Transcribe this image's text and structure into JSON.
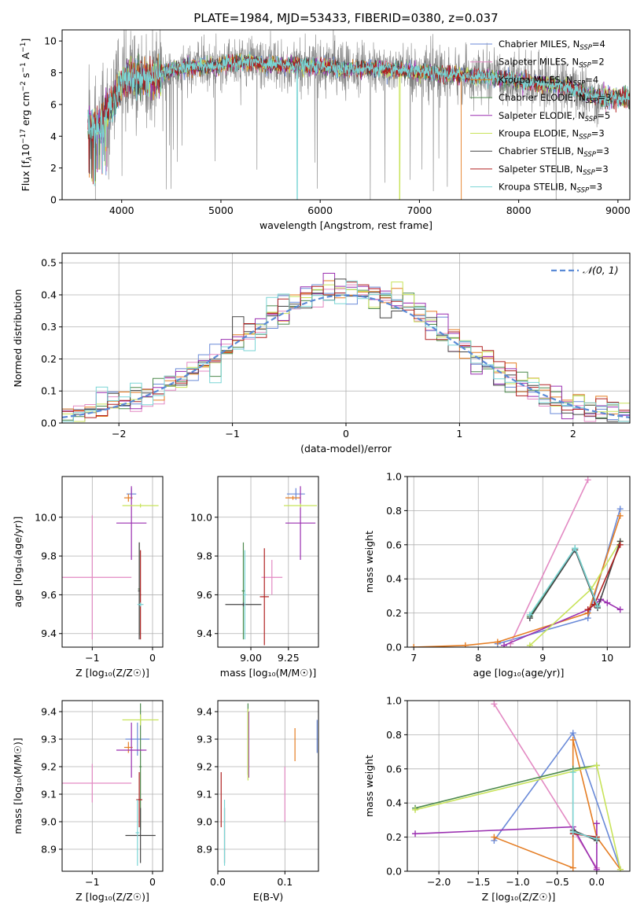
{
  "figure": {
    "title": "PLATE=1984, MJD=53433, FIBERID=0380, z=0.037"
  },
  "colors": {
    "Chabrier MILES": "#6a8ad8",
    "Salpeter MILES": "#e38ac3",
    "Kroupa MILES": "#e57d23",
    "Chabrier ELODIE": "#4d8a4d",
    "Salpeter ELODIE": "#9a2fb0",
    "Kroupa ELODIE": "#c8e35a",
    "Chabrier STELIB": "#444444",
    "Salpeter STELIB": "#b02222",
    "Kroupa STELIB": "#7ad5d5",
    "data": "#808080",
    "gaussian": "#5a8ad6"
  },
  "chart_data": [
    {
      "id": "spectrum",
      "type": "line",
      "title": "PLATE=1984, MJD=53433, FIBERID=0380, z=0.037",
      "xlabel": "wavelength [Angstrom, rest frame]",
      "ylabel_parts": [
        "Flux [f",
        "λ",
        "10",
        "−17",
        " erg cm",
        "−2",
        " s",
        "−1",
        " A",
        "−1",
        "]"
      ],
      "xlim": [
        3400,
        9120
      ],
      "ylim": [
        0,
        10.7
      ],
      "xticks": [
        4000,
        5000,
        6000,
        7000,
        8000,
        9000
      ],
      "yticks": [
        0,
        2,
        4,
        6,
        8,
        10
      ],
      "legend_position": "top-right",
      "legend": [
        {
          "name": "Chabrier MILES",
          "nssp": "4"
        },
        {
          "name": "Salpeter MILES",
          "nssp": "2"
        },
        {
          "name": "Kroupa MILES",
          "nssp": "4"
        },
        {
          "name": "Chabrier ELODIE",
          "nssp": "3"
        },
        {
          "name": "Salpeter ELODIE",
          "nssp": "5"
        },
        {
          "name": "Kroupa ELODIE",
          "nssp": "3"
        },
        {
          "name": "Chabrier STELIB",
          "nssp": "3"
        },
        {
          "name": "Salpeter STELIB",
          "nssp": "3"
        },
        {
          "name": "Kroupa STELIB",
          "nssp": "3"
        }
      ],
      "continuum": {
        "x": [
          3660,
          3700,
          3750,
          3800,
          3850,
          3900,
          3950,
          4000,
          4100,
          4200,
          4300,
          4400,
          4500,
          4700,
          4900,
          5100,
          5300,
          5500,
          5700,
          5900,
          6100,
          6300,
          6500,
          6700,
          6900,
          7100,
          7300,
          7500,
          7700,
          7900,
          8100,
          8300,
          8500,
          8700,
          8850
        ],
        "y": [
          5.0,
          4.5,
          4.6,
          4.8,
          5.6,
          5.9,
          6.6,
          7.4,
          7.8,
          7.6,
          7.7,
          7.9,
          8.2,
          8.4,
          8.4,
          8.6,
          8.7,
          8.5,
          8.5,
          8.4,
          8.4,
          8.2,
          8.3,
          8.2,
          8.1,
          8.0,
          7.9,
          7.8,
          7.7,
          7.6,
          7.4,
          7.3,
          7.1,
          6.6,
          6.4
        ]
      },
      "data_noise_amplitude": 1.1,
      "model_dropouts": [
        {
          "model": "Kroupa MILES",
          "x_from": 7420,
          "x_to": 9120
        },
        {
          "model": "Kroupa STELIB",
          "x_at": 5770
        },
        {
          "model": "Kroupa ELODIE",
          "x_at": 6800
        }
      ]
    },
    {
      "id": "residual-histogram",
      "type": "line",
      "xlabel": "(data-model)/error",
      "ylabel": "Normed distribution",
      "xlim": [
        -2.5,
        2.5
      ],
      "ylim": [
        0,
        0.53
      ],
      "xticks": [
        -2,
        -1,
        0,
        1,
        2
      ],
      "yticks": [
        0.0,
        0.1,
        0.2,
        0.3,
        0.4,
        0.5
      ],
      "legend_position": "top-right",
      "legend": [
        {
          "name": "𝒩(0, 1)",
          "style": "dashed"
        }
      ],
      "bin_width": 0.1,
      "gaussian": {
        "mean": 0,
        "sigma": 1,
        "x_from": -2.5,
        "x_to": 2.5
      }
    },
    {
      "id": "age-vs-Z",
      "type": "scatter",
      "xlabel": "Z [log₁₀(Z/Z☉)]",
      "ylabel": "age  [log₁₀(age/yr)]",
      "xlim": [
        -1.5,
        0.17
      ],
      "ylim": [
        9.33,
        10.21
      ],
      "xticks": [
        -1,
        0
      ],
      "yticks": [
        9.4,
        9.6,
        9.8,
        10.0
      ],
      "points": [
        {
          "model": "Chabrier MILES",
          "x": -0.35,
          "y": 10.12,
          "xerr": 0.08,
          "yerr": 0.03
        },
        {
          "model": "Salpeter MILES",
          "x": -1.0,
          "y": 9.69,
          "xerr": 0.65,
          "yerr": 0.32
        },
        {
          "model": "Kroupa MILES",
          "x": -0.4,
          "y": 10.1,
          "xerr": 0.07,
          "yerr": 0.02
        },
        {
          "model": "Chabrier ELODIE",
          "x": -0.22,
          "y": 9.63,
          "xerr": 0.02,
          "yerr": 0.24
        },
        {
          "model": "Salpeter ELODIE",
          "x": -0.35,
          "y": 9.97,
          "xerr": 0.25,
          "yerr": 0.19
        },
        {
          "model": "Kroupa ELODIE",
          "x": -0.2,
          "y": 10.06,
          "xerr": 0.3,
          "yerr": 0.01
        },
        {
          "model": "Chabrier STELIB",
          "x": -0.22,
          "y": 9.62,
          "xerr": 0.02,
          "yerr": 0.25
        },
        {
          "model": "Salpeter STELIB",
          "x": -0.2,
          "y": 9.6,
          "xerr": 0.01,
          "yerr": 0.23
        },
        {
          "model": "Kroupa STELIB",
          "x": -0.2,
          "y": 9.55,
          "xerr": 0.05,
          "yerr": 0.01
        }
      ]
    },
    {
      "id": "age-vs-mass",
      "type": "scatter",
      "xlabel": "mass [log₁₀(M/M☉)]",
      "ylabel": "",
      "xlim": [
        8.78,
        9.45
      ],
      "ylim": [
        9.33,
        10.21
      ],
      "xticks": [
        9.0,
        9.25
      ],
      "yticks": [
        9.4,
        9.6,
        9.8,
        10.0
      ],
      "points": [
        {
          "model": "Chabrier MILES",
          "x": 9.3,
          "y": 10.12,
          "xerr": 0.06,
          "yerr": 0.03
        },
        {
          "model": "Salpeter MILES",
          "x": 9.14,
          "y": 9.69,
          "xerr": 0.07,
          "yerr": 0.09
        },
        {
          "model": "Kroupa MILES",
          "x": 9.28,
          "y": 10.1,
          "xerr": 0.05,
          "yerr": 0.01
        },
        {
          "model": "Chabrier ELODIE",
          "x": 8.95,
          "y": 9.62,
          "xerr": 0.01,
          "yerr": 0.25
        },
        {
          "model": "Salpeter ELODIE",
          "x": 9.33,
          "y": 9.97,
          "xerr": 0.1,
          "yerr": 0.19
        },
        {
          "model": "Kroupa ELODIE",
          "x": 9.33,
          "y": 10.06,
          "xerr": 0.11,
          "yerr": 0.01
        },
        {
          "model": "Chabrier STELIB",
          "x": 8.95,
          "y": 9.55,
          "xerr": 0.12,
          "yerr": 0.01
        },
        {
          "model": "Salpeter STELIB",
          "x": 9.09,
          "y": 9.59,
          "xerr": 0.03,
          "yerr": 0.25
        },
        {
          "model": "Kroupa STELIB",
          "x": 8.96,
          "y": 9.6,
          "xerr": 0.01,
          "yerr": 0.23
        }
      ]
    },
    {
      "id": "weight-vs-age",
      "type": "line",
      "xlabel": "age  [log₁₀(age/yr)]",
      "ylabel": "mass weight",
      "xlim": [
        6.9,
        10.35
      ],
      "ylim": [
        0,
        1
      ],
      "xticks": [
        7,
        8,
        9,
        10
      ],
      "yticks": [
        0.0,
        0.2,
        0.4,
        0.6,
        0.8,
        1.0
      ],
      "series": [
        {
          "model": "Chabrier MILES",
          "x": [
            8.3,
            9.7,
            10.2
          ],
          "y": [
            0.02,
            0.17,
            0.81
          ]
        },
        {
          "model": "Salpeter MILES",
          "x": [
            8.5,
            9.7
          ],
          "y": [
            0.02,
            0.98
          ]
        },
        {
          "model": "Kroupa MILES",
          "x": [
            7.0,
            7.8,
            8.3,
            9.7,
            10.2
          ],
          "y": [
            0.0,
            0.01,
            0.03,
            0.2,
            0.77
          ]
        },
        {
          "model": "Chabrier ELODIE",
          "x": [
            8.8,
            9.5,
            9.85
          ],
          "y": [
            0.18,
            0.58,
            0.24
          ]
        },
        {
          "model": "Salpeter ELODIE",
          "x": [
            8.4,
            9.7,
            9.9,
            10.0,
            10.2
          ],
          "y": [
            0.01,
            0.22,
            0.28,
            0.26,
            0.22
          ]
        },
        {
          "model": "Kroupa ELODIE",
          "x": [
            8.8,
            9.75,
            10.2
          ],
          "y": [
            0.01,
            0.34,
            0.62
          ]
        },
        {
          "model": "Chabrier STELIB",
          "x": [
            8.8,
            9.5,
            9.85,
            10.2
          ],
          "y": [
            0.17,
            0.57,
            0.23,
            0.62
          ]
        },
        {
          "model": "Salpeter STELIB",
          "x": [
            9.7,
            9.8,
            10.2
          ],
          "y": [
            0.22,
            0.25,
            0.6
          ]
        },
        {
          "model": "Kroupa STELIB",
          "x": [
            8.8,
            9.5,
            9.85
          ],
          "y": [
            0.19,
            0.58,
            0.24
          ]
        }
      ]
    },
    {
      "id": "mass-vs-Z",
      "type": "scatter",
      "xlabel": "Z [log₁₀(Z/Z☉)]",
      "ylabel": "mass [log₁₀(M/M☉)]",
      "xlim": [
        -1.5,
        0.17
      ],
      "ylim": [
        8.82,
        9.44
      ],
      "xticks": [
        -1,
        0
      ],
      "yticks": [
        8.9,
        9.0,
        9.1,
        9.2,
        9.3,
        9.4
      ],
      "points": [
        {
          "model": "Chabrier MILES",
          "x": -0.25,
          "y": 9.3,
          "xerr": 0.2,
          "yerr": 0.06
        },
        {
          "model": "Salpeter MILES",
          "x": -1.0,
          "y": 9.14,
          "xerr": 0.65,
          "yerr": 0.07
        },
        {
          "model": "Kroupa MILES",
          "x": -0.4,
          "y": 9.27,
          "xerr": 0.07,
          "yerr": 0.02
        },
        {
          "model": "Chabrier ELODIE",
          "x": -0.2,
          "y": 9.2,
          "xerr": 0.02,
          "yerr": 0.23
        },
        {
          "model": "Salpeter ELODIE",
          "x": -0.35,
          "y": 9.26,
          "xerr": 0.25,
          "yerr": 0.1
        },
        {
          "model": "Kroupa ELODIE",
          "x": -0.2,
          "y": 9.37,
          "xerr": 0.3,
          "yerr": 0.02
        },
        {
          "model": "Chabrier STELIB",
          "x": -0.2,
          "y": 8.95,
          "xerr": 0.25,
          "yerr": 0.1
        },
        {
          "model": "Salpeter STELIB",
          "x": -0.22,
          "y": 9.08,
          "xerr": 0.05,
          "yerr": 0.1
        },
        {
          "model": "Kroupa STELIB",
          "x": -0.25,
          "y": 8.96,
          "xerr": 0.03,
          "yerr": 0.12
        }
      ]
    },
    {
      "id": "mass-vs-EBV",
      "type": "scatter",
      "xlabel": "E(B-V)",
      "ylabel": "",
      "xlim": [
        0,
        0.15
      ],
      "ylim": [
        8.82,
        9.44
      ],
      "xticks": [
        0.0,
        0.1
      ],
      "yticks": [
        8.9,
        9.0,
        9.1,
        9.2,
        9.3,
        9.4
      ],
      "points": [
        {
          "model": "Chabrier MILES",
          "x": 0.148,
          "y": 9.31,
          "xerr": 0,
          "yerr": 0.06
        },
        {
          "model": "Salpeter MILES",
          "x": 0.1,
          "y": 9.1,
          "xerr": 0,
          "yerr": 0.1
        },
        {
          "model": "Kroupa MILES",
          "x": 0.115,
          "y": 9.28,
          "xerr": 0,
          "yerr": 0.06
        },
        {
          "model": "Chabrier ELODIE",
          "x": 0.045,
          "y": 9.3,
          "xerr": 0,
          "yerr": 0.13
        },
        {
          "model": "Salpeter ELODIE",
          "x": 0.046,
          "y": 9.28,
          "xerr": 0,
          "yerr": 0.12
        },
        {
          "model": "Kroupa ELODIE",
          "x": 0.045,
          "y": 9.28,
          "xerr": 0,
          "yerr": 0.13
        },
        {
          "model": "Chabrier STELIB",
          "x": 0.01,
          "y": 8.95,
          "xerr": 0,
          "yerr": 0.1
        },
        {
          "model": "Salpeter STELIB",
          "x": 0.005,
          "y": 9.08,
          "xerr": 0,
          "yerr": 0.1
        },
        {
          "model": "Kroupa STELIB",
          "x": 0.01,
          "y": 8.96,
          "xerr": 0,
          "yerr": 0.12
        }
      ]
    },
    {
      "id": "weight-vs-Z",
      "type": "line",
      "xlabel": "Z [log₁₀(Z/Z☉)]",
      "ylabel": "mass weight",
      "xlim": [
        -2.4,
        0.42
      ],
      "ylim": [
        0,
        1
      ],
      "xticks": [
        -2.0,
        -1.5,
        -1.0,
        -0.5,
        0.0
      ],
      "yticks": [
        0.0,
        0.2,
        0.4,
        0.6,
        0.8,
        1.0
      ],
      "series": [
        {
          "model": "Chabrier MILES",
          "x": [
            -1.3,
            -0.3,
            0.3
          ],
          "y": [
            0.18,
            0.81,
            0.01
          ]
        },
        {
          "model": "Salpeter MILES",
          "x": [
            -1.3,
            0.0
          ],
          "y": [
            0.98,
            0.02
          ]
        },
        {
          "model": "Kroupa MILES",
          "x": [
            -1.3,
            -0.3,
            -0.3,
            0.0,
            0.3
          ],
          "y": [
            0.2,
            0.02,
            0.77,
            0.2,
            0.01
          ]
        },
        {
          "model": "Chabrier ELODIE",
          "x": [
            -2.3,
            -0.3,
            0.0
          ],
          "y": [
            0.37,
            0.6,
            0.62
          ]
        },
        {
          "model": "Salpeter ELODIE",
          "x": [
            -2.3,
            -0.3,
            0.0,
            0.0
          ],
          "y": [
            0.22,
            0.26,
            0.01,
            0.28
          ]
        },
        {
          "model": "Kroupa ELODIE",
          "x": [
            -2.3,
            0.0,
            0.3
          ],
          "y": [
            0.36,
            0.62,
            0.01
          ]
        },
        {
          "model": "Chabrier STELIB",
          "x": [
            -0.3,
            0.0
          ],
          "y": [
            0.24,
            0.18
          ]
        },
        {
          "model": "Salpeter STELIB",
          "x": [
            -0.3,
            0.0
          ],
          "y": [
            0.22,
            0.2
          ]
        },
        {
          "model": "Kroupa STELIB",
          "x": [
            -0.3,
            -0.3,
            0.0
          ],
          "y": [
            0.58,
            0.23,
            0.19
          ]
        }
      ]
    }
  ]
}
